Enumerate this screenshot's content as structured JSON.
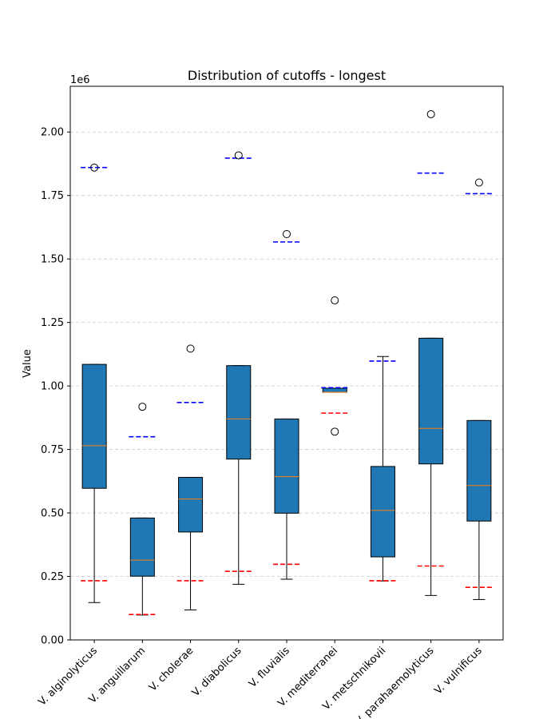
{
  "chart_data": {
    "type": "box",
    "title": "Distribution of cutoffs - longest",
    "xlabel": "",
    "ylabel": "Value",
    "y_offset_label": "1e6",
    "y_unit_multiplier": 1000000,
    "ylim": [
      0,
      2.18
    ],
    "yticks": [
      0.0,
      0.25,
      0.5,
      0.75,
      1.0,
      1.25,
      1.5,
      1.75,
      2.0
    ],
    "ytick_labels": [
      "0.00",
      "0.25",
      "0.50",
      "0.75",
      "1.00",
      "1.25",
      "1.50",
      "1.75",
      "2.00"
    ],
    "grid": "horizontal dashed",
    "colors": {
      "box": "#1f77b4",
      "median": "#ff7f0e",
      "upper_marker": "#0000ff",
      "lower_marker": "#ff0000",
      "grid": "#cccccc"
    },
    "categories": [
      "V. alginolyticus",
      "V. anguillarum",
      "V. cholerae",
      "V. diabolicus",
      "V. fluvialis",
      "V. mediterranei",
      "V. metschnikovii",
      "V. parahaemolyticus",
      "V. vulnificus"
    ],
    "boxes": [
      {
        "whisker_low": 0.147,
        "q1": 0.597,
        "median": 0.765,
        "q3": 1.085,
        "whisker_high": 1.085,
        "outliers": [
          1.86
        ],
        "upper_marker": 1.86,
        "lower_marker": 0.233
      },
      {
        "whisker_low": 0.098,
        "q1": 0.251,
        "median": 0.314,
        "q3": 0.48,
        "whisker_high": 0.48,
        "outliers": [
          0.918
        ],
        "upper_marker": 0.8,
        "lower_marker": 0.1
      },
      {
        "whisker_low": 0.118,
        "q1": 0.425,
        "median": 0.555,
        "q3": 0.64,
        "whisker_high": 0.64,
        "outliers": [
          1.147
        ],
        "upper_marker": 0.935,
        "lower_marker": 0.233
      },
      {
        "whisker_low": 0.219,
        "q1": 0.712,
        "median": 0.87,
        "q3": 1.08,
        "whisker_high": 1.08,
        "outliers": [
          1.908
        ],
        "upper_marker": 1.897,
        "lower_marker": 0.27
      },
      {
        "whisker_low": 0.239,
        "q1": 0.499,
        "median": 0.643,
        "q3": 0.87,
        "whisker_high": 0.87,
        "outliers": [
          1.598
        ],
        "upper_marker": 1.567,
        "lower_marker": 0.298
      },
      {
        "whisker_low": 0.975,
        "q1": 0.975,
        "median": 0.975,
        "q3": 0.991,
        "whisker_high": 0.991,
        "outliers": [
          1.337,
          0.82
        ],
        "upper_marker": 0.993,
        "lower_marker": 0.893
      },
      {
        "whisker_low": 0.232,
        "q1": 0.327,
        "median": 0.51,
        "q3": 0.683,
        "whisker_high": 1.116,
        "outliers": [],
        "upper_marker": 1.098,
        "lower_marker": 0.233
      },
      {
        "whisker_low": 0.175,
        "q1": 0.693,
        "median": 0.833,
        "q3": 1.188,
        "whisker_high": 1.188,
        "outliers": [
          2.07
        ],
        "upper_marker": 1.838,
        "lower_marker": 0.291
      },
      {
        "whisker_low": 0.159,
        "q1": 0.468,
        "median": 0.608,
        "q3": 0.864,
        "whisker_high": 0.864,
        "outliers": [
          1.801
        ],
        "upper_marker": 1.757,
        "lower_marker": 0.207
      }
    ]
  }
}
